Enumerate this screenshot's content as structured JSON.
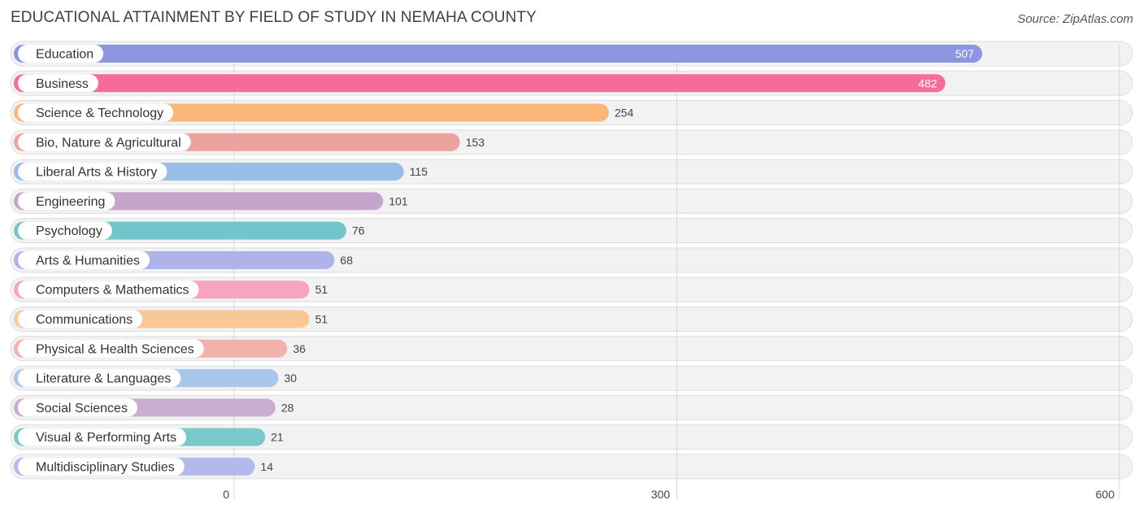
{
  "title": "EDUCATIONAL ATTAINMENT BY FIELD OF STUDY IN NEMAHA COUNTY",
  "source": "Source: ZipAtlas.com",
  "chart_data": {
    "type": "bar",
    "orientation": "horizontal",
    "title": "EDUCATIONAL ATTAINMENT BY FIELD OF STUDY IN NEMAHA COUNTY",
    "categories": [
      "Education",
      "Business",
      "Science & Technology",
      "Bio, Nature & Agricultural",
      "Liberal Arts & History",
      "Engineering",
      "Psychology",
      "Arts & Humanities",
      "Computers & Mathematics",
      "Communications",
      "Physical & Health Sciences",
      "Literature & Languages",
      "Social Sciences",
      "Visual & Performing Arts",
      "Multidisciplinary Studies"
    ],
    "values": [
      507,
      482,
      254,
      153,
      115,
      101,
      76,
      68,
      51,
      51,
      36,
      30,
      28,
      21,
      14
    ],
    "colors": [
      "#8c96e0",
      "#f56c98",
      "#f9b877",
      "#eba3a0",
      "#98bde8",
      "#c5a5cb",
      "#72c6cb",
      "#aeb4ea",
      "#f8a3bf",
      "#f9c894",
      "#f1b1ad",
      "#a9c6ec",
      "#c9aed0",
      "#78c9ca",
      "#b3b9ec"
    ],
    "xticks": [
      0,
      300,
      600
    ],
    "xlim": [
      0,
      600
    ],
    "grid": true,
    "legend": "none"
  }
}
